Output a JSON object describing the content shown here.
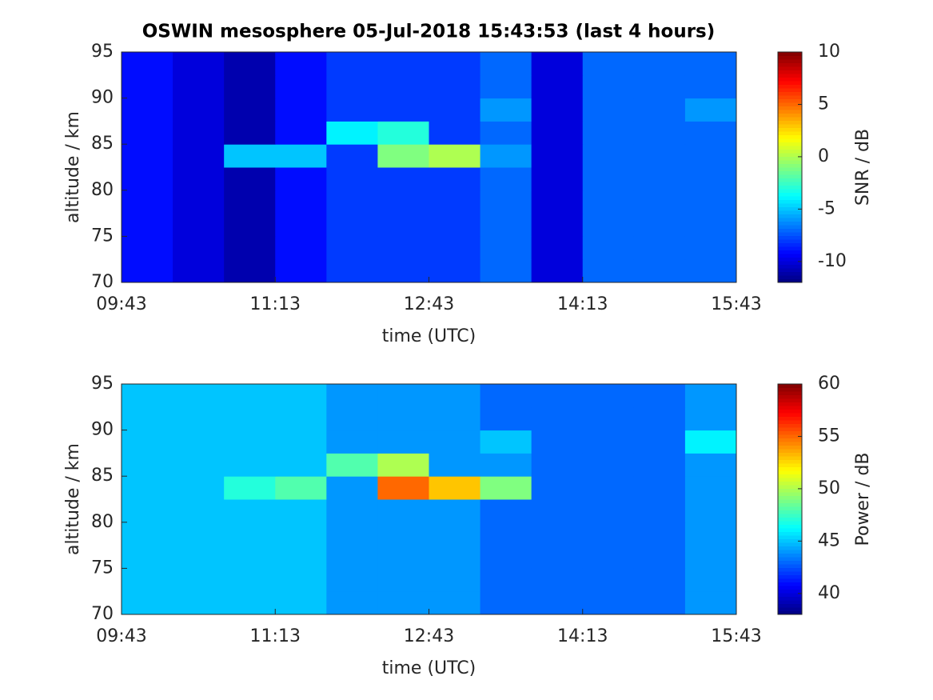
{
  "chart_data": [
    {
      "type": "heatmap",
      "title": "OSWIN mesosphere 05-Jul-2018 15:43:53 (last 4 hours)",
      "x_label": "time (UTC)",
      "y_label": "altitude / km",
      "colorbar_label": "SNR / dB",
      "colormap": "jet",
      "xlim": [
        "09:43",
        "15:43"
      ],
      "xticks": [
        "09:43",
        "11:13",
        "12:43",
        "14:13",
        "15:43"
      ],
      "ylim": [
        70,
        95
      ],
      "yticks": [
        70,
        75,
        80,
        85,
        90,
        95
      ],
      "clim": [
        -12,
        10
      ],
      "cticks": [
        -10,
        -5,
        0,
        5,
        10
      ],
      "z": [
        [
          -9,
          -10,
          -11,
          -9,
          -8,
          -8,
          -8,
          -7,
          -10,
          -7,
          -7,
          -7
        ],
        [
          -9,
          -10,
          -11,
          -9,
          -8,
          -8,
          -8,
          -7,
          -10,
          -7,
          -7,
          -7
        ],
        [
          -9,
          -10,
          -11,
          -9,
          -8,
          -8,
          -8,
          -7,
          -10,
          -7,
          -7,
          -7
        ],
        [
          -9,
          -10,
          -11,
          -9,
          -8,
          -8,
          -8,
          -7,
          -10,
          -7,
          -7,
          -7
        ],
        [
          -9,
          -10,
          -11,
          -9,
          -8,
          -8,
          -8,
          -7,
          -10,
          -7,
          -7,
          -7
        ],
        [
          -9,
          -10,
          -5,
          -5,
          -8,
          -1,
          0,
          -6,
          -10,
          -7,
          -7,
          -7
        ],
        [
          -9,
          -10,
          -11,
          -9,
          -4,
          -3,
          -8,
          -7,
          -10,
          -7,
          -7,
          -7
        ],
        [
          -9,
          -10,
          -11,
          -9,
          -8,
          -8,
          -8,
          -6,
          -10,
          -7,
          -7,
          -6
        ],
        [
          -9,
          -10,
          -11,
          -9,
          -8,
          -8,
          -8,
          -7,
          -10,
          -7,
          -7,
          -7
        ],
        [
          -9,
          -10,
          -11,
          -9,
          -8,
          -8,
          -8,
          -7,
          -10,
          -7,
          -7,
          -7
        ]
      ]
    },
    {
      "type": "heatmap",
      "x_label": "time (UTC)",
      "y_label": "altitude / km",
      "colorbar_label": "Power / dB",
      "colormap": "jet",
      "xlim": [
        "09:43",
        "15:43"
      ],
      "xticks": [
        "09:43",
        "11:13",
        "12:43",
        "14:13",
        "15:43"
      ],
      "ylim": [
        70,
        95
      ],
      "yticks": [
        70,
        75,
        80,
        85,
        90,
        95
      ],
      "clim": [
        38,
        60
      ],
      "cticks": [
        40,
        45,
        50,
        55,
        60
      ],
      "z": [
        [
          45,
          45,
          45,
          45,
          44,
          44,
          44,
          43,
          43,
          43,
          43,
          44
        ],
        [
          45,
          45,
          45,
          45,
          44,
          44,
          44,
          43,
          43,
          43,
          43,
          44
        ],
        [
          45,
          45,
          45,
          45,
          44,
          44,
          44,
          43,
          43,
          43,
          43,
          44
        ],
        [
          45,
          45,
          45,
          45,
          44,
          44,
          44,
          43,
          43,
          43,
          43,
          44
        ],
        [
          45,
          45,
          45,
          45,
          44,
          44,
          44,
          43,
          43,
          43,
          43,
          44
        ],
        [
          45,
          45,
          47,
          48,
          44,
          55,
          53,
          49,
          43,
          43,
          43,
          44
        ],
        [
          45,
          45,
          45,
          45,
          48,
          50,
          44,
          44,
          43,
          43,
          43,
          44
        ],
        [
          45,
          45,
          45,
          45,
          44,
          44,
          44,
          45,
          43,
          43,
          43,
          46
        ],
        [
          45,
          45,
          45,
          45,
          44,
          44,
          44,
          43,
          43,
          43,
          43,
          44
        ],
        [
          45,
          45,
          45,
          45,
          44,
          44,
          44,
          43,
          43,
          43,
          43,
          44
        ]
      ]
    }
  ]
}
